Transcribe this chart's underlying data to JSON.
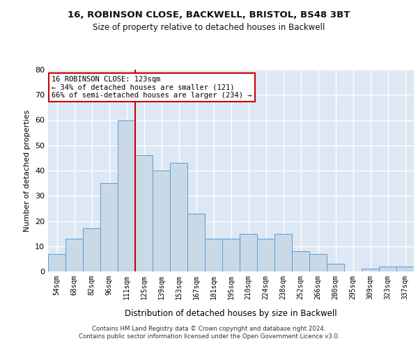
{
  "title_line1": "16, ROBINSON CLOSE, BACKWELL, BRISTOL, BS48 3BT",
  "title_line2": "Size of property relative to detached houses in Backwell",
  "xlabel": "Distribution of detached houses by size in Backwell",
  "ylabel": "Number of detached properties",
  "categories": [
    "54sqm",
    "68sqm",
    "82sqm",
    "96sqm",
    "111sqm",
    "125sqm",
    "139sqm",
    "153sqm",
    "167sqm",
    "181sqm",
    "195sqm",
    "210sqm",
    "224sqm",
    "238sqm",
    "252sqm",
    "266sqm",
    "280sqm",
    "295sqm",
    "309sqm",
    "323sqm",
    "337sqm"
  ],
  "values": [
    7,
    13,
    17,
    35,
    60,
    46,
    40,
    43,
    23,
    13,
    13,
    15,
    13,
    15,
    8,
    7,
    3,
    0,
    1,
    2,
    2
  ],
  "bar_color": "#c9d9e8",
  "bar_edge_color": "#5b9bd5",
  "background_color": "#dde8f4",
  "grid_color": "#ffffff",
  "annotation_box_text": "16 ROBINSON CLOSE: 123sqm\n← 34% of detached houses are smaller (121)\n66% of semi-detached houses are larger (234) →",
  "annotation_box_color": "#ffffff",
  "annotation_box_edge_color": "#cc0000",
  "vline_x_index": 4.5,
  "vline_color": "#cc0000",
  "ylim": [
    0,
    80
  ],
  "yticks": [
    0,
    10,
    20,
    30,
    40,
    50,
    60,
    70,
    80
  ],
  "footer_line1": "Contains HM Land Registry data © Crown copyright and database right 2024.",
  "footer_line2": "Contains public sector information licensed under the Open Government Licence v3.0."
}
